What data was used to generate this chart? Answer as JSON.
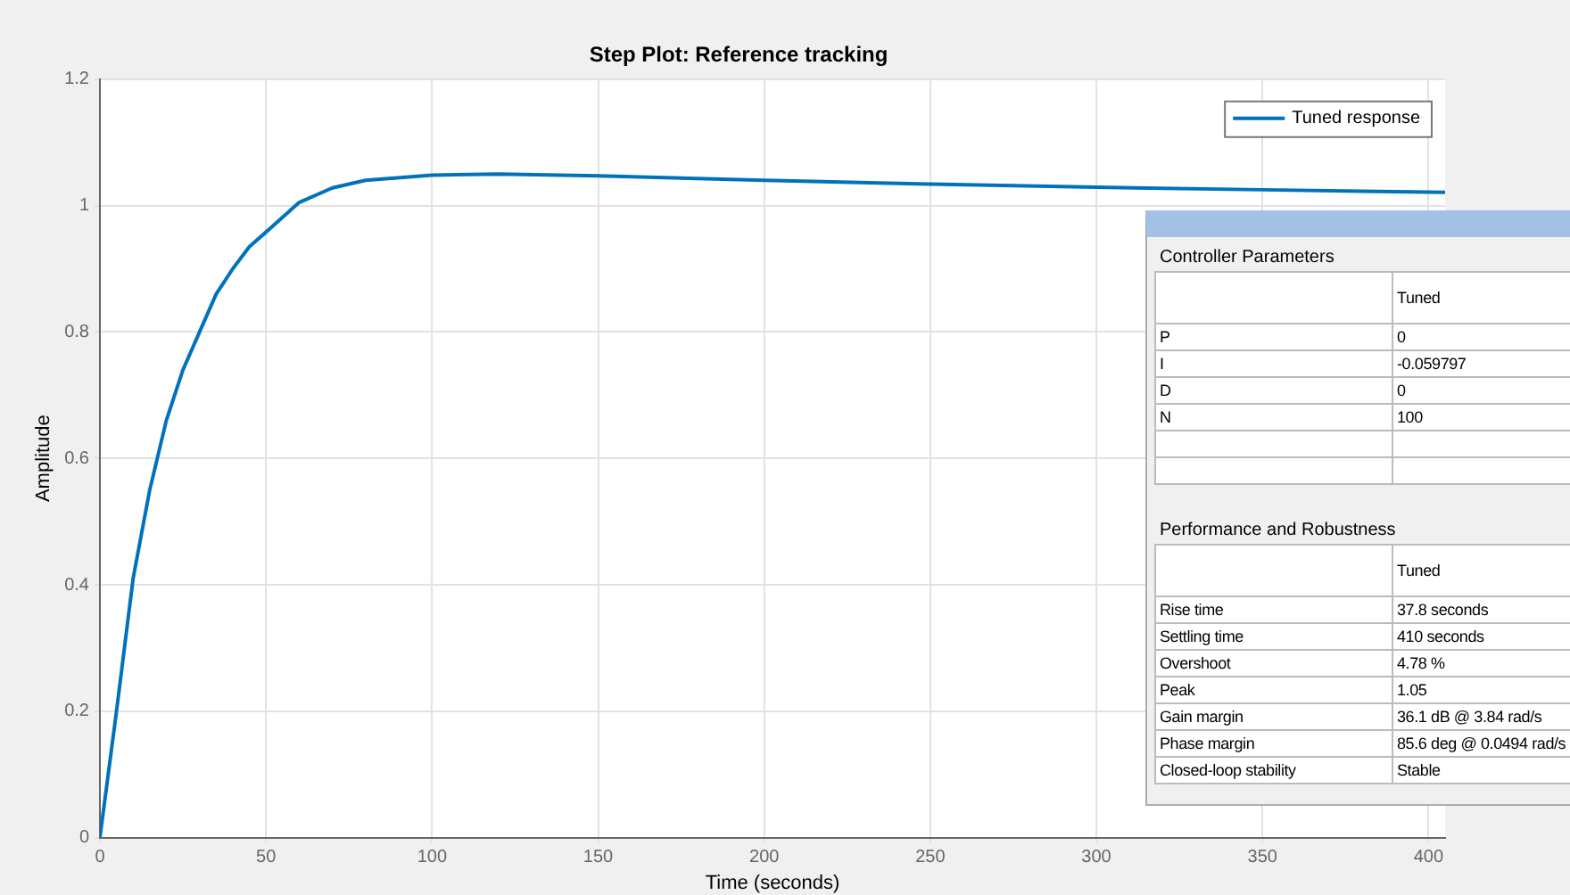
{
  "chart_data": {
    "type": "line",
    "title": "Step Plot: Reference tracking",
    "xlabel": "Time (seconds)",
    "ylabel": "Amplitude",
    "x": [
      0,
      2.5,
      5,
      10,
      15,
      20,
      25,
      30,
      35,
      40,
      45,
      50,
      60,
      70,
      80,
      100,
      120,
      150,
      200,
      250,
      300,
      350,
      405
    ],
    "series": [
      {
        "name": "Tuned response",
        "color": "#0072bd",
        "values": [
          0,
          0.1,
          0.2,
          0.41,
          0.55,
          0.66,
          0.74,
          0.8,
          0.86,
          0.9,
          0.935,
          0.958,
          1.005,
          1.028,
          1.04,
          1.048,
          1.05,
          1.047,
          1.04,
          1.034,
          1.029,
          1.025,
          1.021
        ]
      }
    ],
    "xlim": [
      0,
      405
    ],
    "xticks": [
      0,
      50,
      100,
      150,
      200,
      250,
      300,
      350,
      400
    ],
    "ylim": [
      0,
      1.2
    ],
    "yticks": [
      0,
      0.2,
      0.4,
      0.6,
      0.8,
      1,
      1.2
    ],
    "grid": true,
    "legend": "top right",
    "marker": "none",
    "line_style": "solid",
    "annotations": [
      "Controller Parameters",
      "Tuned",
      "P",
      "0",
      "I",
      "-0.059797",
      "D",
      "0",
      "N",
      "100",
      "Performance and Robustness",
      "Tuned",
      "Rise time",
      "37.8 seconds",
      "Settling time",
      "410 seconds",
      "Overshoot",
      "4.78 %",
      "Peak",
      "1.05",
      "Gain margin",
      "36.1 dB @ 3.84 rad/s",
      "Phase margin",
      "85.6 deg @ 0.0494 rad/s",
      "Closed-loop stability",
      "Stable"
    ]
  }
}
